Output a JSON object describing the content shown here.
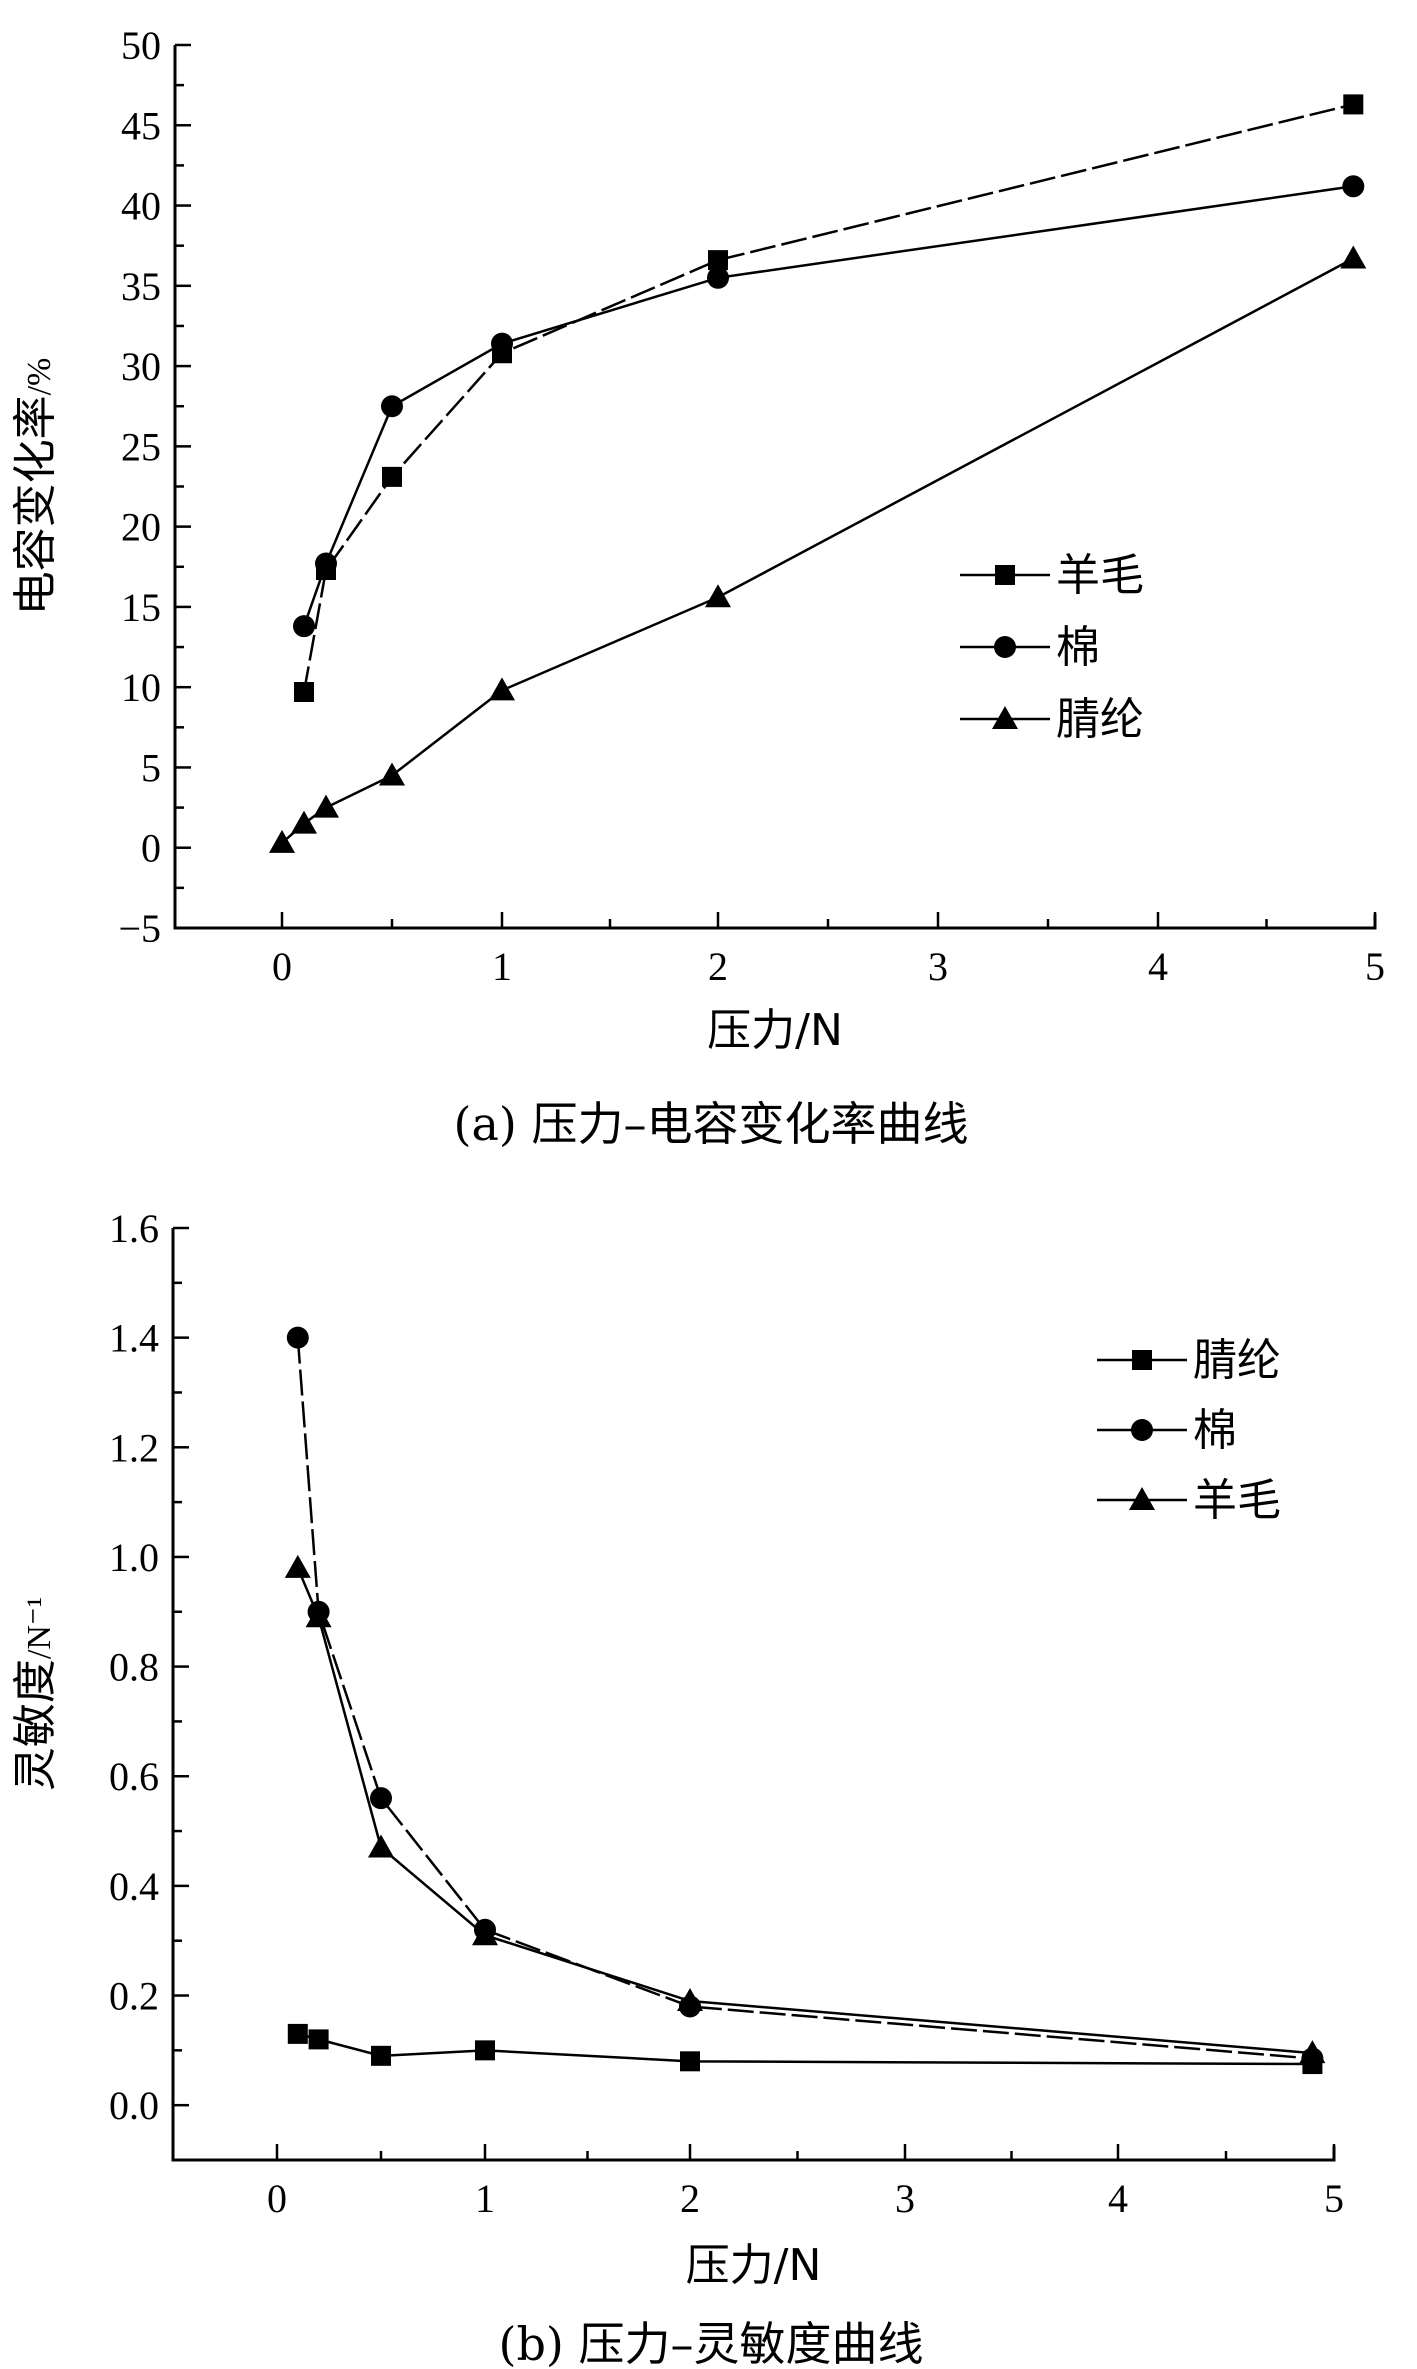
{
  "chart_data": [
    {
      "type": "line",
      "caption": "(a) 压力–电容变化率曲线",
      "xlabel": "压力/N",
      "ylabel": "电容变化率/%",
      "xlim": [
        -0.5,
        5
      ],
      "ylim": [
        -5,
        50
      ],
      "x_tick_labels": [
        "0",
        "1",
        "2",
        "3",
        "4",
        "5"
      ],
      "x_scale": "piecewise-linear: 0-2 wide, 2-5 compressed",
      "y_ticks": [
        -5,
        0,
        5,
        10,
        15,
        20,
        25,
        30,
        35,
        40,
        45,
        50
      ],
      "y_tick_labels": [
        "−5",
        "0",
        "5",
        "10",
        "15",
        "20",
        "25",
        "30",
        "35",
        "40",
        "45",
        "50"
      ],
      "legend": "right-middle",
      "series": [
        {
          "name": "羊毛",
          "marker": "square",
          "dashed": true,
          "x": [
            0.1,
            0.2,
            0.5,
            1.0,
            2.0,
            4.9
          ],
          "values": [
            9.7,
            17.3,
            23.1,
            30.8,
            36.6,
            46.3
          ]
        },
        {
          "name": "棉",
          "marker": "circle",
          "dashed": false,
          "x": [
            0.1,
            0.2,
            0.5,
            1.0,
            2.0,
            4.9
          ],
          "values": [
            13.8,
            17.7,
            27.5,
            31.4,
            35.5,
            41.2
          ]
        },
        {
          "name": "腈纶",
          "marker": "triangle",
          "dashed": false,
          "x": [
            0,
            0.1,
            0.2,
            0.5,
            1.0,
            2.0,
            4.9
          ],
          "values": [
            0.3,
            1.5,
            2.5,
            4.5,
            9.8,
            15.6,
            36.7
          ]
        }
      ]
    },
    {
      "type": "line",
      "caption": "(b) 压力–灵敏度曲线",
      "xlabel": "压力/N",
      "ylabel": "灵敏度/N⁻¹",
      "xlim": [
        -0.5,
        5
      ],
      "ylim": [
        -0.1,
        1.6
      ],
      "x_tick_labels": [
        "0",
        "1",
        "2",
        "3",
        "4",
        "5"
      ],
      "x_scale": "piecewise-linear: 0-2 wide, 2-5 compressed",
      "y_ticks": [
        0.0,
        0.2,
        0.4,
        0.6,
        0.8,
        1.0,
        1.2,
        1.4,
        1.6
      ],
      "y_tick_labels": [
        "0.0",
        "0.2",
        "0.4",
        "0.6",
        "0.8",
        "1.0",
        "1.2",
        "1.4",
        "1.6"
      ],
      "legend": "top-right",
      "series": [
        {
          "name": "腈纶",
          "marker": "square",
          "dashed": false,
          "x": [
            0.1,
            0.2,
            0.5,
            1.0,
            2.0,
            4.9
          ],
          "values": [
            0.13,
            0.12,
            0.09,
            0.1,
            0.08,
            0.075
          ]
        },
        {
          "name": "棉",
          "marker": "circle",
          "dashed": true,
          "x": [
            0.1,
            0.2,
            0.5,
            1.0,
            2.0,
            4.9
          ],
          "values": [
            1.4,
            0.9,
            0.56,
            0.32,
            0.18,
            0.085
          ]
        },
        {
          "name": "羊毛",
          "marker": "triangle",
          "dashed": false,
          "x": [
            0.1,
            0.2,
            0.5,
            1.0,
            2.0,
            4.9
          ],
          "values": [
            0.98,
            0.89,
            0.47,
            0.31,
            0.19,
            0.095
          ]
        }
      ]
    }
  ]
}
